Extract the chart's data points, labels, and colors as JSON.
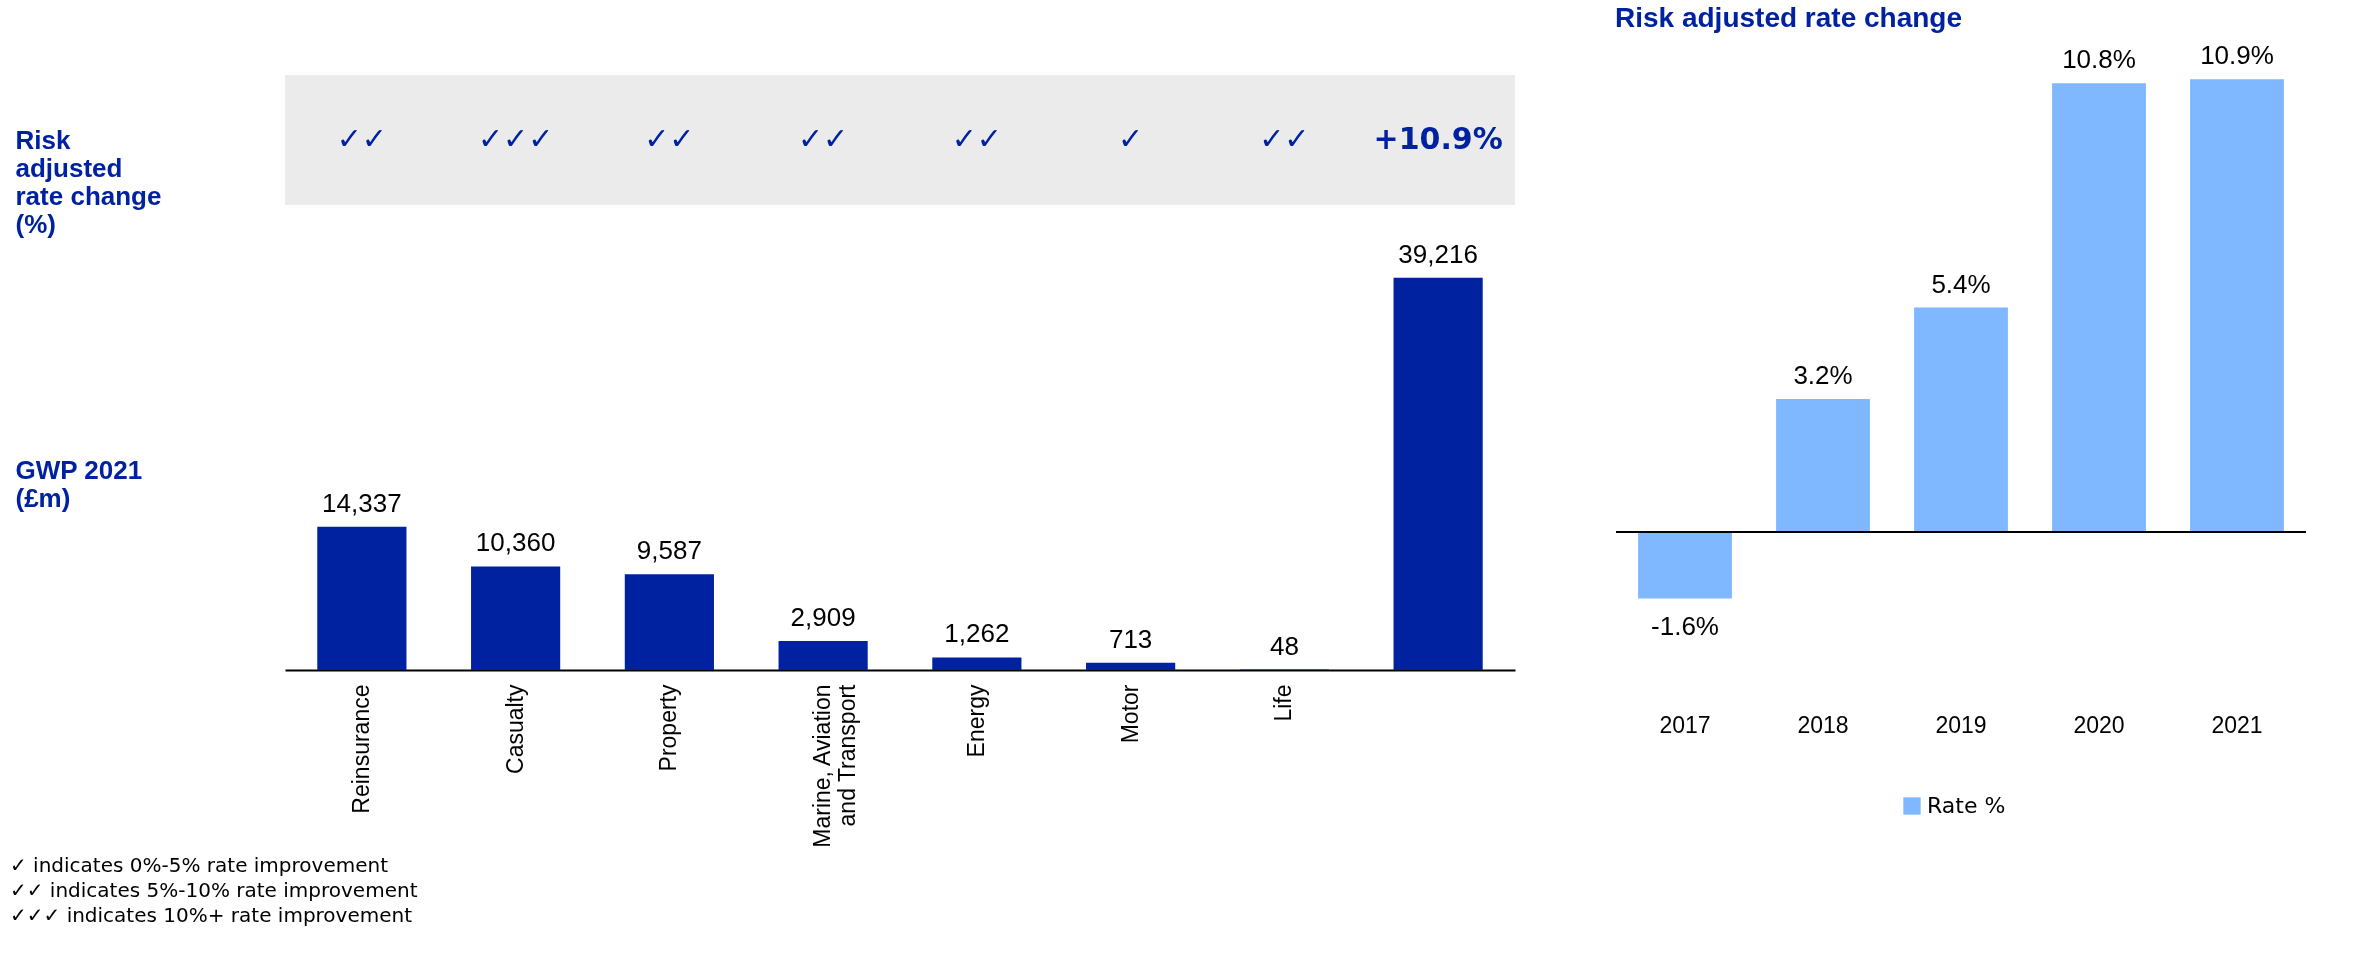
{
  "chart_data": [
    {
      "type": "bar",
      "ylabel": "GWP 2021 (£m)",
      "categories": [
        "Reinsurance",
        "Casualty",
        "Property",
        "Marine, Aviation and Transport",
        "Energy",
        "Motor",
        "Life",
        null
      ],
      "values": [
        14337,
        10360,
        9587,
        2909,
        1262,
        713,
        48,
        39216
      ],
      "colors": [
        "#0022a0",
        "#0022a0",
        "#0022a0",
        "#0022a0",
        "#0022a0",
        "#0022a0",
        "#0022a0",
        "#0022a0"
      ],
      "value_labels": [
        "14,337",
        "10,360",
        "9,587",
        "2,909",
        "1,262",
        "713",
        "48",
        "39,216"
      ],
      "annotations": [
        "Risk adjusted rate change (%)",
        "✓✓",
        "✓✓✓",
        "✓✓",
        "✓✓",
        "✓✓",
        "✓",
        "✓✓",
        "+10.9%",
        "✓ indicates 0%-5% rate improvement",
        "✓✓ indicates 5%-10% rate improvement",
        "✓✓✓ indicates 10%+ rate improvement"
      ]
    },
    {
      "type": "bar",
      "title": "Risk adjusted rate change",
      "categories": [
        "2017",
        "2018",
        "2019",
        "2020",
        "2021"
      ],
      "series": [
        {
          "name": "Rate %",
          "color": "#7fb8ff",
          "values": [
            -1.6,
            3.2,
            5.4,
            10.8,
            10.9
          ],
          "value_labels": [
            "-1.6%",
            "3.2%",
            "5.4%",
            "10.8%",
            "10.9%"
          ]
        }
      ],
      "legend": "bottom"
    }
  ]
}
